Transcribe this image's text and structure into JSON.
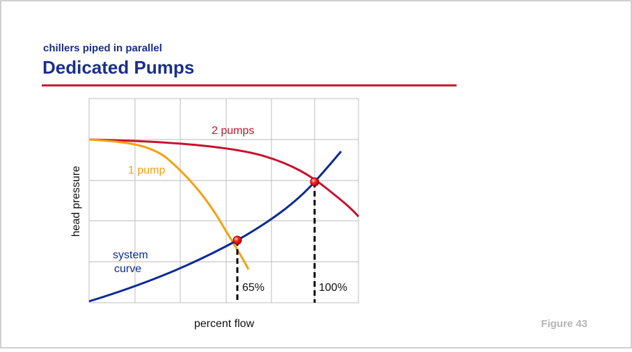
{
  "header": {
    "subtitle": "chillers piped in parallel",
    "title": "Dedicated Pumps"
  },
  "figure": {
    "y_axis_label": "head pressure",
    "x_axis_label": "percent flow",
    "curves": [
      {
        "label": "2 pumps"
      },
      {
        "label": "1 pump"
      },
      {
        "label_lines": [
          "system",
          "curve"
        ]
      }
    ],
    "points": [
      {
        "label": "65%"
      },
      {
        "label": "100%"
      }
    ]
  },
  "footer": {
    "figure_label": "Figure 43"
  }
}
